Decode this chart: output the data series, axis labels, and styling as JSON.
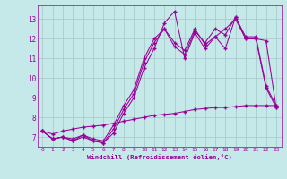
{
  "xlabel": "Windchill (Refroidissement éolien,°C)",
  "xlim": [
    -0.5,
    23.5
  ],
  "ylim": [
    6.5,
    13.7
  ],
  "yticks": [
    7,
    8,
    9,
    10,
    11,
    12,
    13
  ],
  "xticks": [
    0,
    1,
    2,
    3,
    4,
    5,
    6,
    7,
    8,
    9,
    10,
    11,
    12,
    13,
    14,
    15,
    16,
    17,
    18,
    19,
    20,
    21,
    22,
    23
  ],
  "bg_color": "#c5e8e8",
  "line_color": "#990099",
  "grid_color": "#aacccc",
  "lines": [
    {
      "x": [
        0,
        1,
        2,
        3,
        4,
        5,
        6,
        7,
        8,
        9,
        10,
        11,
        12,
        13,
        14,
        15,
        16,
        17,
        18,
        19,
        20,
        21,
        22,
        23
      ],
      "y": [
        7.3,
        6.9,
        7.0,
        6.8,
        7.1,
        6.8,
        6.7,
        7.2,
        8.2,
        9.0,
        10.5,
        11.5,
        12.8,
        13.4,
        11.0,
        12.3,
        11.5,
        12.1,
        11.5,
        13.1,
        12.0,
        12.0,
        9.5,
        8.5
      ]
    },
    {
      "x": [
        0,
        1,
        2,
        3,
        4,
        5,
        6,
        7,
        8,
        9,
        10,
        11,
        12,
        13,
        14,
        15,
        16,
        17,
        18,
        19,
        20,
        21,
        22,
        23
      ],
      "y": [
        7.3,
        6.9,
        7.0,
        6.8,
        7.0,
        6.8,
        6.7,
        7.4,
        8.4,
        9.2,
        10.8,
        11.8,
        12.5,
        11.6,
        11.2,
        12.4,
        11.8,
        12.5,
        12.2,
        13.1,
        12.1,
        12.1,
        9.6,
        8.6
      ]
    },
    {
      "x": [
        0,
        1,
        2,
        3,
        4,
        5,
        6,
        7,
        8,
        9,
        10,
        11,
        12,
        13,
        14,
        15,
        16,
        17,
        18,
        19,
        20,
        21,
        22,
        23
      ],
      "y": [
        7.3,
        6.9,
        7.0,
        6.9,
        7.1,
        6.9,
        6.8,
        7.6,
        8.6,
        9.4,
        11.0,
        12.0,
        12.5,
        11.8,
        11.4,
        12.5,
        11.7,
        12.1,
        12.5,
        13.0,
        12.0,
        12.0,
        11.9,
        8.5
      ]
    },
    {
      "x": [
        0,
        1,
        2,
        3,
        4,
        5,
        6,
        7,
        8,
        9,
        10,
        11,
        12,
        13,
        14,
        15,
        16,
        17,
        18,
        19,
        20,
        21,
        22,
        23
      ],
      "y": [
        7.3,
        7.15,
        7.3,
        7.4,
        7.5,
        7.55,
        7.6,
        7.7,
        7.8,
        7.9,
        8.0,
        8.1,
        8.15,
        8.2,
        8.3,
        8.4,
        8.45,
        8.5,
        8.5,
        8.55,
        8.6,
        8.6,
        8.6,
        8.6
      ]
    }
  ]
}
